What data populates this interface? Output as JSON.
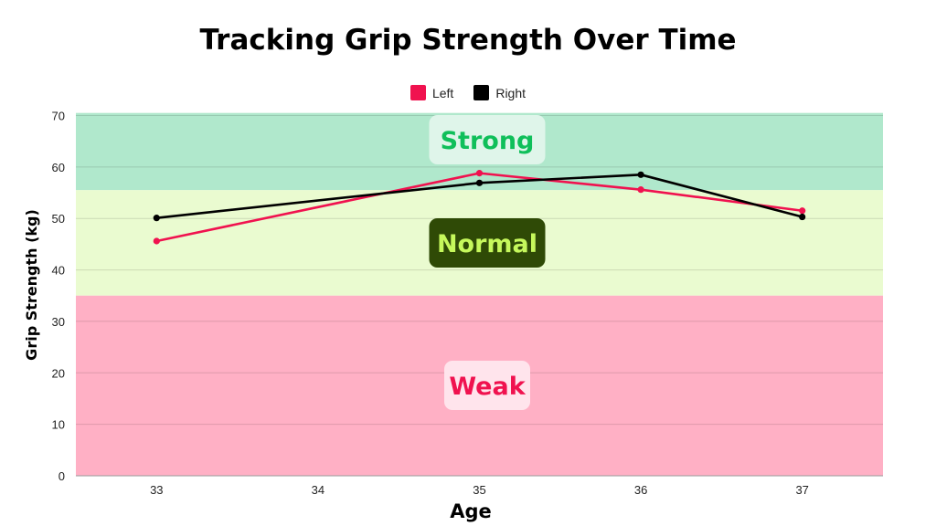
{
  "chart_data": {
    "type": "line",
    "title": "Tracking Grip Strength Over Time",
    "xlabel": "Age",
    "ylabel": "Grip Strength (kg)",
    "x": [
      33,
      34,
      35,
      36,
      37
    ],
    "x_ticks": [
      "33",
      "34",
      "35",
      "36",
      "37"
    ],
    "xlim": [
      32.5,
      37.5
    ],
    "y_ticks": [
      "0",
      "10",
      "20",
      "30",
      "40",
      "50",
      "60",
      "70"
    ],
    "ylim": [
      0,
      70
    ],
    "grid": true,
    "legend_position": "top-center",
    "series": [
      {
        "name": "Left",
        "color": "#f0124f",
        "x": [
          33,
          35,
          36,
          37
        ],
        "values": [
          45.6,
          58.8,
          55.6,
          51.5
        ]
      },
      {
        "name": "Right",
        "color": "#000000",
        "x": [
          33,
          35,
          36,
          37
        ],
        "values": [
          50.1,
          56.9,
          58.5,
          50.3
        ]
      }
    ],
    "zones": [
      {
        "label": "Strong",
        "from": 55.5,
        "to": 70.5,
        "fill": "#b0e8cc",
        "label_bg": "#dff5ea",
        "label_color": "#0fbf5a"
      },
      {
        "label": "Normal",
        "from": 35,
        "to": 55.5,
        "fill": "#eafbd0",
        "label_bg": "#2f4a06",
        "label_color": "#c6f85c"
      },
      {
        "label": "Weak",
        "from": 0,
        "to": 35,
        "fill": "#ffb0c5",
        "label_bg": "#ffe4ec",
        "label_color": "#f0124f"
      }
    ]
  }
}
